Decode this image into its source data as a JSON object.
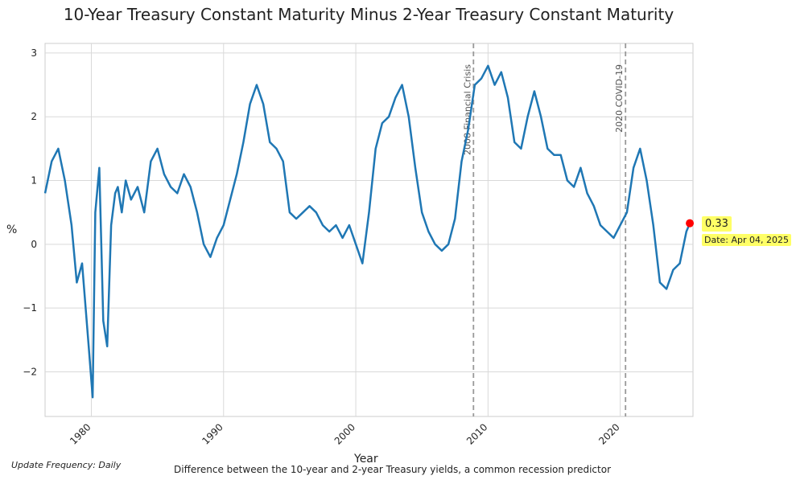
{
  "chart_data": {
    "type": "line",
    "title": "10-Year Treasury Constant Maturity Minus 2-Year Treasury Constant Maturity",
    "xlabel": "Year",
    "ylabel": "%",
    "xlim": [
      1976.5,
      2025.5
    ],
    "ylim": [
      -2.7,
      3.15
    ],
    "x_ticks": [
      1980,
      1990,
      2000,
      2010,
      2020
    ],
    "x_tick_labels": [
      "1980",
      "1990",
      "2000",
      "2010",
      "2020"
    ],
    "y_ticks": [
      -2,
      -1,
      0,
      1,
      2,
      3
    ],
    "y_tick_labels": [
      "−2",
      "−1",
      "0",
      "1",
      "2",
      "3"
    ],
    "grid": true,
    "series": [
      {
        "color": "#1f77b4",
        "x": [
          1976.5,
          1977.0,
          1977.5,
          1978.0,
          1978.5,
          1978.9,
          1979.3,
          1979.8,
          1980.1,
          1980.3,
          1980.6,
          1980.9,
          1981.2,
          1981.5,
          1981.8,
          1982.0,
          1982.3,
          1982.6,
          1983.0,
          1983.5,
          1984.0,
          1984.5,
          1985.0,
          1985.5,
          1986.0,
          1986.5,
          1987.0,
          1987.5,
          1988.0,
          1988.5,
          1989.0,
          1989.5,
          1990.0,
          1990.5,
          1991.0,
          1991.5,
          1992.0,
          1992.5,
          1993.0,
          1993.5,
          1994.0,
          1994.5,
          1995.0,
          1995.5,
          1996.0,
          1996.5,
          1997.0,
          1997.5,
          1998.0,
          1998.5,
          1999.0,
          1999.5,
          2000.0,
          2000.5,
          2001.0,
          2001.5,
          2002.0,
          2002.5,
          2003.0,
          2003.5,
          2004.0,
          2004.5,
          2005.0,
          2005.5,
          2006.0,
          2006.5,
          2007.0,
          2007.5,
          2008.0,
          2008.5,
          2009.0,
          2009.5,
          2010.0,
          2010.5,
          2011.0,
          2011.5,
          2012.0,
          2012.5,
          2013.0,
          2013.5,
          2014.0,
          2014.5,
          2015.0,
          2015.5,
          2016.0,
          2016.5,
          2017.0,
          2017.5,
          2018.0,
          2018.5,
          2019.0,
          2019.5,
          2020.0,
          2020.5,
          2021.0,
          2021.5,
          2022.0,
          2022.5,
          2023.0,
          2023.5,
          2024.0,
          2024.5,
          2025.0,
          2025.26
        ],
        "y": [
          0.8,
          1.3,
          1.5,
          1.0,
          0.3,
          -0.6,
          -0.3,
          -1.6,
          -2.4,
          0.5,
          1.2,
          -1.2,
          -1.6,
          0.3,
          0.8,
          0.9,
          0.5,
          1.0,
          0.7,
          0.9,
          0.5,
          1.3,
          1.5,
          1.1,
          0.9,
          0.8,
          1.1,
          0.9,
          0.5,
          0.0,
          -0.2,
          0.1,
          0.3,
          0.7,
          1.1,
          1.6,
          2.2,
          2.5,
          2.2,
          1.6,
          1.5,
          1.3,
          0.5,
          0.4,
          0.5,
          0.6,
          0.5,
          0.3,
          0.2,
          0.3,
          0.1,
          0.3,
          0.0,
          -0.3,
          0.5,
          1.5,
          1.9,
          2.0,
          2.3,
          2.5,
          2.0,
          1.2,
          0.5,
          0.2,
          0.0,
          -0.1,
          0.0,
          0.4,
          1.3,
          1.8,
          2.5,
          2.6,
          2.8,
          2.5,
          2.7,
          2.3,
          1.6,
          1.5,
          2.0,
          2.4,
          2.0,
          1.5,
          1.4,
          1.4,
          1.0,
          0.9,
          1.2,
          0.8,
          0.6,
          0.3,
          0.2,
          0.1,
          0.3,
          0.5,
          1.2,
          1.5,
          1.0,
          0.3,
          -0.6,
          -0.7,
          -0.4,
          -0.3,
          0.2,
          0.33
        ]
      }
    ],
    "vlines": [
      {
        "x": 2008.9,
        "label": "2008 Financial Crisis",
        "color": "#999999",
        "style": "dashed"
      },
      {
        "x": 2020.4,
        "label": "2020 COVID-19",
        "color": "#999999",
        "style": "dashed"
      }
    ],
    "last_point": {
      "x": 2025.26,
      "y": 0.33,
      "color": "#ff0000"
    },
    "annotations": {
      "value_label": "0.33",
      "date_label": "Date: Apr 04, 2025",
      "highlight_color": "#ffff66"
    },
    "footer": {
      "frequency": "Update Frequency: Daily",
      "description": "Difference between the 10-year and 2-year Treasury yields, a common recession predictor"
    }
  }
}
